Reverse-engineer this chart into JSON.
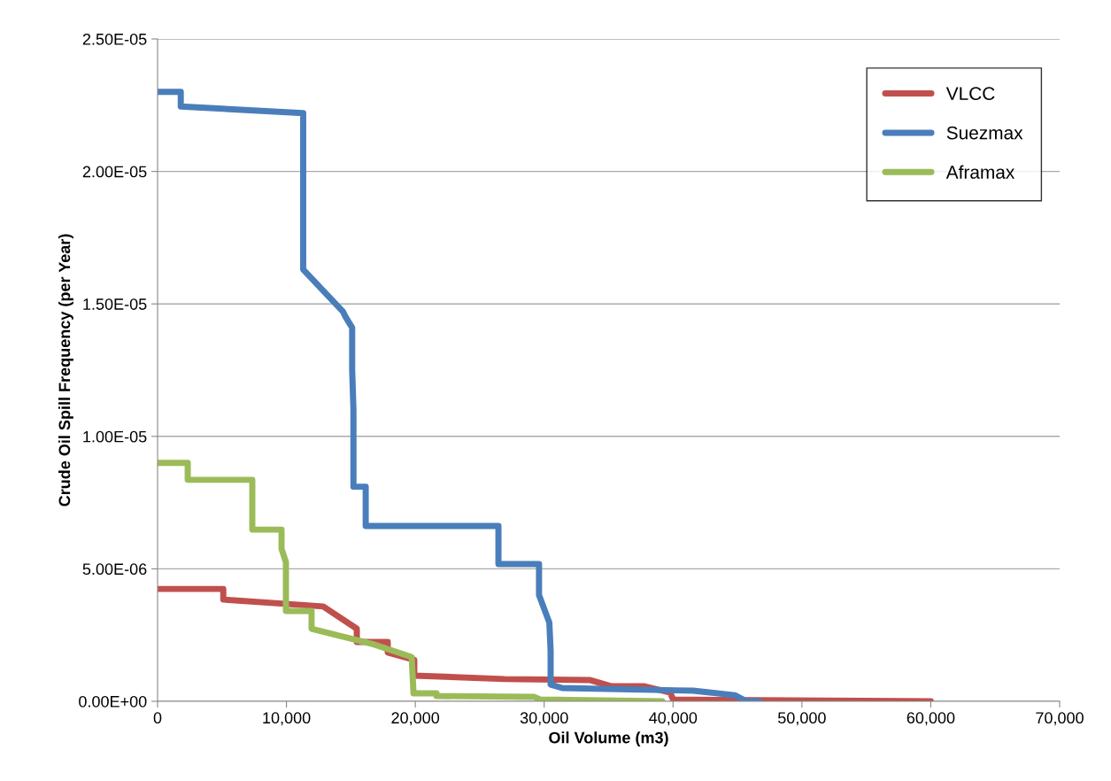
{
  "chart_data": {
    "type": "line",
    "xlabel": "Oil Volume (m3)",
    "ylabel": "Crude Oil Spill Frequency (per Year)",
    "xlim": [
      0,
      70000
    ],
    "ylim": [
      0,
      2.5e-05
    ],
    "xticks": [
      0,
      {
        "value": 10000,
        "label": "10,000"
      },
      {
        "value": 20000,
        "label": "20,000"
      },
      {
        "value": 30000,
        "label": "30,000"
      },
      {
        "value": 40000,
        "label": "40,000"
      },
      {
        "value": 50000,
        "label": "50,000"
      },
      {
        "value": 60000,
        "label": "60,000"
      },
      {
        "value": 70000,
        "label": "70,000"
      }
    ],
    "yticks": [
      {
        "value": 0,
        "label": "0.00E+00"
      },
      {
        "value": 5e-06,
        "label": "5.00E-06"
      },
      {
        "value": 1e-05,
        "label": "1.00E-05"
      },
      {
        "value": 1.5e-05,
        "label": "1.50E-05"
      },
      {
        "value": 2e-05,
        "label": "2.00E-05"
      },
      {
        "value": 2.5e-05,
        "label": "2.50E-05"
      }
    ],
    "grid": "y",
    "legend": "top right",
    "marker": "none",
    "line_style": "solid",
    "series": [
      {
        "name": "VLCC",
        "color": "#c0504d",
        "x": [
          0,
          5100,
          5100,
          12850,
          15460,
          15460,
          17860,
          17860,
          19920,
          19920,
          26930,
          33590,
          35170,
          37720,
          39780,
          40000,
          43500,
          60000
        ],
        "values": [
          4.24e-06,
          4.24e-06,
          3.84e-06,
          3.58e-06,
          2.74e-06,
          2.24e-06,
          2.24e-06,
          1.84e-06,
          1.57e-06,
          9.7e-07,
          8.4e-07,
          8e-07,
          5.7e-07,
          5.7e-07,
          3.3e-07,
          7e-08,
          5e-08,
          0
        ]
      },
      {
        "name": "Suezmax",
        "color": "#4a7ebb",
        "x": [
          0,
          1800,
          1800,
          11300,
          11300,
          14400,
          14600,
          15100,
          15100,
          15200,
          15200,
          16150,
          16150,
          26450,
          26450,
          29600,
          29600,
          30400,
          30500,
          30500,
          31400,
          41560,
          44800,
          45700,
          46700
        ],
        "values": [
          2.3e-05,
          2.3e-05,
          2.245e-05,
          2.22e-05,
          1.63e-05,
          1.47e-05,
          1.45e-05,
          1.41e-05,
          1.25e-05,
          1.1e-05,
          8.1e-06,
          8.1e-06,
          6.62e-06,
          6.62e-06,
          5.18e-06,
          5.18e-06,
          4.01e-06,
          2.97e-06,
          1.9e-06,
          6.3e-07,
          5e-07,
          4e-07,
          2.3e-07,
          0,
          0
        ]
      },
      {
        "name": "Aframax",
        "color": "#9bbb59",
        "x": [
          0,
          2340,
          2340,
          7350,
          7350,
          9620,
          9620,
          9960,
          9960,
          11950,
          11950,
          16830,
          19720,
          19860,
          21640,
          21640,
          29200,
          29680,
          39160
        ],
        "values": [
          9e-06,
          9e-06,
          8.36e-06,
          8.36e-06,
          6.48e-06,
          6.48e-06,
          5.75e-06,
          5.25e-06,
          3.41e-06,
          3.41e-06,
          2.74e-06,
          2.14e-06,
          1.67e-06,
          3e-07,
          3e-07,
          2e-07,
          1.7e-07,
          7e-08,
          0
        ]
      }
    ]
  }
}
